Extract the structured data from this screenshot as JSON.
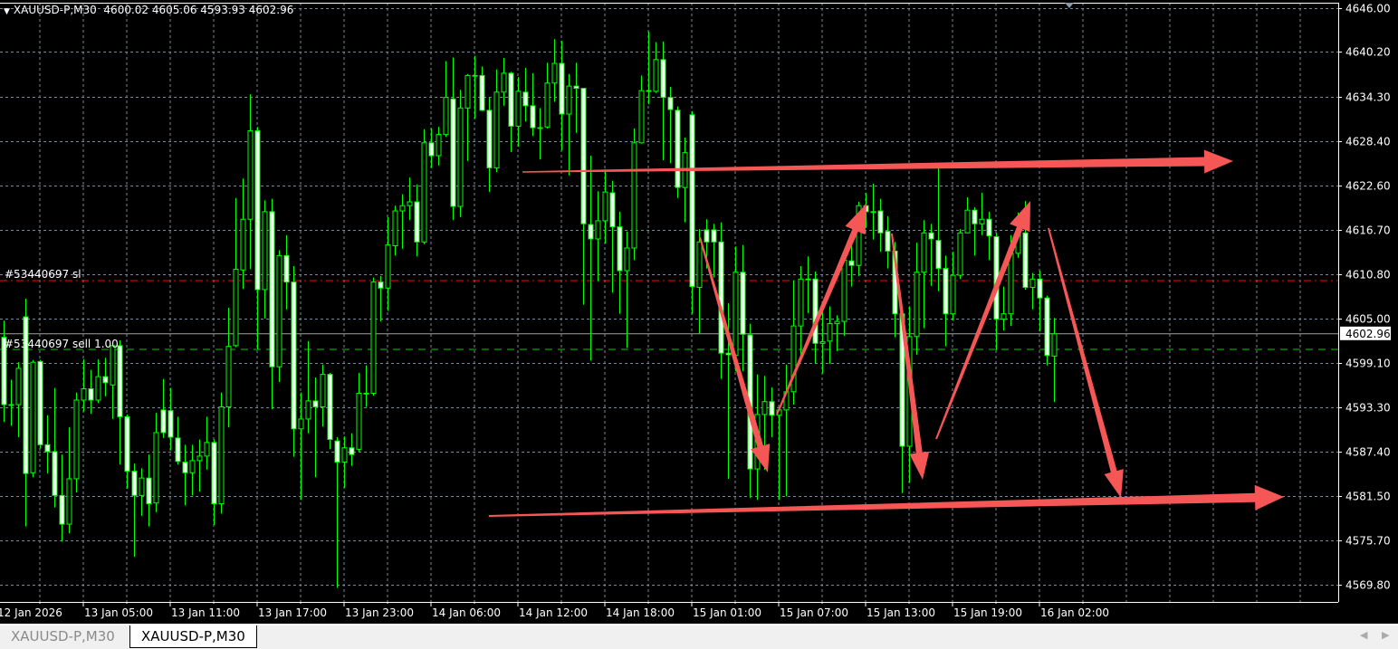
{
  "header": {
    "symbol": "XAUUSD-P,M30",
    "ohlc": "4600.02 4605.06 4593.93 4602.96"
  },
  "tabs": [
    {
      "label": "XAUUSD-P,M30",
      "active": false
    },
    {
      "label": "XAUUSD-P,M30",
      "active": true
    }
  ],
  "order_labels": {
    "sl": "#53440697 sl",
    "sell": "#53440697 sell 1.00"
  },
  "colors": {
    "background": "#000000",
    "candle_outline": "#00ff00",
    "bear_fill": "#ffffff",
    "bull_fill": "#000000",
    "grid": "#778899",
    "sl_line": "#ff0000",
    "order_line": "#00cc00",
    "bid_line": "#a0a0a0",
    "annotation_arrows": "#f55656"
  },
  "chart_data": {
    "type": "candlestick",
    "title": "XAUUSD-P,M30",
    "timeframe": "M30",
    "ylim": [
      4569.8,
      4646.0
    ],
    "grid": true,
    "y_ticks": [
      "4646.00",
      "4640.20",
      "4634.30",
      "4628.40",
      "4622.60",
      "4616.70",
      "4610.80",
      "4605.00",
      "4599.10",
      "4593.30",
      "4587.40",
      "4581.50",
      "4575.70",
      "4569.80"
    ],
    "x_ticks": [
      "12 Jan 2026",
      "13 Jan 05:00",
      "13 Jan 11:00",
      "13 Jan 17:00",
      "13 Jan 23:00",
      "14 Jan 06:00",
      "14 Jan 12:00",
      "14 Jan 18:00",
      "15 Jan 01:00",
      "15 Jan 07:00",
      "15 Jan 13:00",
      "15 Jan 19:00",
      "16 Jan 02:00"
    ],
    "current_price": "4602.96",
    "sl_price": 4610.0,
    "order_price": 4600.9,
    "ohlc_fields": [
      "open",
      "high",
      "low",
      "close"
    ],
    "candles": [
      [
        4602.5,
        4604.7,
        4591.3,
        4593.6
      ],
      [
        4593.6,
        4596.9,
        4590.8,
        4593.6
      ],
      [
        4593.6,
        4599.2,
        4589.3,
        4598.4
      ],
      [
        4605.2,
        4607.6,
        4577.5,
        4584.5
      ],
      [
        4584.6,
        4599.5,
        4584.0,
        4599.2
      ],
      [
        4599.3,
        4599.5,
        4587.8,
        4588.3
      ],
      [
        4588.3,
        4592.2,
        4584.5,
        4587.4
      ],
      [
        4587.4,
        4595.8,
        4580.0,
        4581.6
      ],
      [
        4581.6,
        4587.0,
        4575.5,
        4577.8
      ],
      [
        4577.8,
        4590.6,
        4576.6,
        4583.8
      ],
      [
        4583.8,
        4595.2,
        4582.0,
        4594.2
      ],
      [
        4594.2,
        4599.6,
        4592.7,
        4595.7
      ],
      [
        4595.7,
        4598.2,
        4592.4,
        4594.2
      ],
      [
        4594.2,
        4599.6,
        4593.8,
        4597.3
      ],
      [
        4597.3,
        4599.8,
        4594.7,
        4596.5
      ],
      [
        4596.2,
        4601.4,
        4591.7,
        4601.4
      ],
      [
        4601.4,
        4602.1,
        4585.7,
        4592.0
      ],
      [
        4592.0,
        4592.3,
        4582.5,
        4584.8
      ],
      [
        4584.8,
        4585.8,
        4573.5,
        4581.6
      ],
      [
        4581.6,
        4585.2,
        4578.9,
        4583.9
      ],
      [
        4583.9,
        4587.0,
        4577.5,
        4580.5
      ],
      [
        4580.6,
        4592.5,
        4579.4,
        4589.9
      ],
      [
        4592.9,
        4597.0,
        4589.2,
        4589.9
      ],
      [
        4592.8,
        4595.8,
        4587.6,
        4589.3
      ],
      [
        4589.2,
        4592.0,
        4585.7,
        4586.1
      ],
      [
        4586.0,
        4588.3,
        4580.3,
        4584.6
      ],
      [
        4584.6,
        4588.3,
        4581.6,
        4586.2
      ],
      [
        4586.2,
        4589.0,
        4582.1,
        4586.8
      ],
      [
        4586.8,
        4592.0,
        4585.0,
        4588.6
      ],
      [
        4588.6,
        4589.0,
        4577.7,
        4580.5
      ],
      [
        4580.5,
        4595.2,
        4579.2,
        4593.3
      ],
      [
        4593.3,
        4606.4,
        4590.6,
        4601.3
      ],
      [
        4601.4,
        4620.9,
        4601.2,
        4611.5
      ],
      [
        4611.4,
        4623.5,
        4608.9,
        4618.1
      ],
      [
        4618.1,
        4634.6,
        4611.5,
        4629.8
      ],
      [
        4629.8,
        4630.3,
        4600.9,
        4608.8
      ],
      [
        4608.8,
        4620.6,
        4605.0,
        4619.1
      ],
      [
        4619.1,
        4620.8,
        4593.0,
        4598.6
      ],
      [
        4598.6,
        4614.0,
        4596.6,
        4613.3
      ],
      [
        4613.3,
        4616.0,
        4606.2,
        4609.8
      ],
      [
        4609.8,
        4611.9,
        4586.7,
        4590.4
      ],
      [
        4590.4,
        4595.2,
        4581.0,
        4591.7
      ],
      [
        4591.7,
        4602.0,
        4589.8,
        4594.1
      ],
      [
        4594.1,
        4597.2,
        4584.0,
        4593.3
      ],
      [
        4593.3,
        4598.9,
        4590.7,
        4597.6
      ],
      [
        4597.6,
        4597.8,
        4587.7,
        4589.0
      ],
      [
        4588.8,
        4589.3,
        4569.4,
        4586.0
      ],
      [
        4586.0,
        4589.4,
        4582.6,
        4587.9
      ],
      [
        4587.9,
        4589.8,
        4585.5,
        4587.0
      ],
      [
        4587.7,
        4597.8,
        4587.4,
        4595.1
      ],
      [
        4595.1,
        4598.8,
        4593.3,
        4595.1
      ],
      [
        4595.1,
        4610.4,
        4594.8,
        4609.8
      ],
      [
        4609.8,
        4610.6,
        4604.6,
        4609.0
      ],
      [
        4609.0,
        4618.4,
        4606.0,
        4614.7
      ],
      [
        4614.6,
        4619.9,
        4613.3,
        4619.2
      ],
      [
        4619.2,
        4621.4,
        4614.2,
        4619.9
      ],
      [
        4619.9,
        4623.6,
        4618.0,
        4620.4
      ],
      [
        4620.4,
        4622.7,
        4613.2,
        4615.1
      ],
      [
        4615.1,
        4630.0,
        4614.8,
        4628.2
      ],
      [
        4628.2,
        4630.1,
        4624.9,
        4626.5
      ],
      [
        4626.5,
        4630.3,
        4625.2,
        4629.3
      ],
      [
        4629.3,
        4639.0,
        4629.0,
        4634.2
      ],
      [
        4634.0,
        4639.5,
        4618.0,
        4619.8
      ],
      [
        4619.8,
        4635.2,
        4618.4,
        4632.8
      ],
      [
        4632.8,
        4637.3,
        4625.8,
        4637.1
      ],
      [
        4637.1,
        4639.7,
        4631.4,
        4637.1
      ],
      [
        4637.1,
        4638.3,
        4632.4,
        4632.5
      ],
      [
        4632.5,
        4634.2,
        4621.7,
        4624.9
      ],
      [
        4624.9,
        4637.9,
        4624.3,
        4634.9
      ],
      [
        4634.9,
        4639.4,
        4633.1,
        4637.4
      ],
      [
        4637.4,
        4637.6,
        4627.0,
        4630.4
      ],
      [
        4630.4,
        4636.9,
        4627.7,
        4635.0
      ],
      [
        4634.9,
        4638.1,
        4631.0,
        4633.1
      ],
      [
        4633.1,
        4637.4,
        4629.1,
        4630.2
      ],
      [
        4630.2,
        4632.8,
        4626.0,
        4630.2
      ],
      [
        4630.3,
        4638.8,
        4630.1,
        4636.1
      ],
      [
        4636.1,
        4641.9,
        4633.6,
        4638.7
      ],
      [
        4638.7,
        4641.7,
        4627.2,
        4632.0
      ],
      [
        4632.0,
        4637.3,
        4623.9,
        4635.7
      ],
      [
        4635.7,
        4638.8,
        4629.5,
        4635.4
      ],
      [
        4635.4,
        4635.4,
        4606.8,
        4617.5
      ],
      [
        4617.4,
        4626.5,
        4599.4,
        4615.5
      ],
      [
        4615.5,
        4621.8,
        4609.9,
        4617.9
      ],
      [
        4617.9,
        4624.7,
        4614.9,
        4621.7
      ],
      [
        4621.6,
        4623.2,
        4608.4,
        4617.1
      ],
      [
        4617.1,
        4619.1,
        4605.6,
        4611.3
      ],
      [
        4611.3,
        4616.5,
        4601.1,
        4614.3
      ],
      [
        4614.3,
        4630.1,
        4612.7,
        4628.2
      ],
      [
        4628.2,
        4637.1,
        4628.1,
        4635.1
      ],
      [
        4635.1,
        4642.9,
        4633.3,
        4635.0
      ],
      [
        4635.0,
        4641.5,
        4634.8,
        4639.2
      ],
      [
        4639.2,
        4641.6,
        4625.9,
        4634.2
      ],
      [
        4634.2,
        4635.6,
        4625.5,
        4632.6
      ],
      [
        4632.5,
        4633.0,
        4620.9,
        4622.3
      ],
      [
        4622.3,
        4628.9,
        4617.7,
        4626.9
      ],
      [
        4631.9,
        4632.4,
        4605.6,
        4609.2
      ],
      [
        4609.1,
        4616.8,
        4603.0,
        4615.1
      ],
      [
        4616.7,
        4618.1,
        4611.6,
        4615.1
      ],
      [
        4616.7,
        4617.5,
        4610.4,
        4615.1
      ],
      [
        4615.1,
        4617.7,
        4597.0,
        4600.4
      ],
      [
        4600.4,
        4607.0,
        4583.8,
        4600.2
      ],
      [
        4600.1,
        4614.5,
        4598.0,
        4611.1
      ],
      [
        4611.1,
        4614.7,
        4598.0,
        4602.9
      ],
      [
        4602.8,
        4604.3,
        4581.3,
        4585.1
      ],
      [
        4585.1,
        4597.6,
        4581.0,
        4592.3
      ],
      [
        4592.3,
        4597.4,
        4585.0,
        4594.0
      ],
      [
        4594.0,
        4595.9,
        4589.3,
        4592.2
      ],
      [
        4592.2,
        4593.0,
        4581.0,
        4592.9
      ],
      [
        4592.9,
        4598.9,
        4581.5,
        4595.3
      ],
      [
        4595.3,
        4610.0,
        4593.6,
        4604.0
      ],
      [
        4604.0,
        4611.9,
        4600.2,
        4610.2
      ],
      [
        4610.2,
        4613.2,
        4605.7,
        4610.2
      ],
      [
        4610.2,
        4611.2,
        4599.1,
        4601.7
      ],
      [
        4601.7,
        4606.6,
        4597.7,
        4601.9
      ],
      [
        4602.0,
        4606.6,
        4599.0,
        4604.3
      ],
      [
        4604.3,
        4605.4,
        4600.7,
        4604.6
      ],
      [
        4604.6,
        4613.9,
        4602.7,
        4612.7
      ],
      [
        4612.6,
        4615.1,
        4609.2,
        4612.0
      ],
      [
        4612.0,
        4620.4,
        4610.6,
        4619.9
      ],
      [
        4619.9,
        4621.6,
        4617.0,
        4619.1
      ],
      [
        4619.1,
        4622.8,
        4615.4,
        4619.1
      ],
      [
        4619.2,
        4620.8,
        4613.8,
        4616.3
      ],
      [
        4616.5,
        4618.5,
        4611.6,
        4613.9
      ],
      [
        4613.9,
        4615.1,
        4602.5,
        4605.6
      ],
      [
        4605.6,
        4606.0,
        4581.9,
        4588.1
      ],
      [
        4588.1,
        4606.6,
        4583.3,
        4602.6
      ],
      [
        4602.6,
        4615.0,
        4600.2,
        4611.1
      ],
      [
        4611.1,
        4618.0,
        4603.7,
        4616.3
      ],
      [
        4616.3,
        4617.5,
        4609.3,
        4615.5
      ],
      [
        4615.3,
        4624.9,
        4608.6,
        4611.6
      ],
      [
        4611.6,
        4613.3,
        4601.3,
        4605.6
      ],
      [
        4605.6,
        4613.8,
        4604.7,
        4610.7
      ],
      [
        4610.7,
        4616.8,
        4610.2,
        4616.3
      ],
      [
        4616.3,
        4621.0,
        4616.3,
        4619.3
      ],
      [
        4619.3,
        4619.7,
        4613.3,
        4617.5
      ],
      [
        4617.5,
        4621.6,
        4616.0,
        4618.1
      ],
      [
        4618.1,
        4619.1,
        4612.7,
        4615.9
      ],
      [
        4615.8,
        4616.3,
        4600.8,
        4604.9
      ],
      [
        4604.9,
        4609.2,
        4603.4,
        4605.6
      ],
      [
        4605.6,
        4616.0,
        4604.0,
        4613.6
      ],
      [
        4613.6,
        4619.0,
        4613.0,
        4616.5
      ],
      [
        4616.3,
        4620.5,
        4608.8,
        4609.1
      ],
      [
        4609.1,
        4611.0,
        4606.2,
        4610.2
      ],
      [
        4610.2,
        4611.3,
        4603.3,
        4607.7
      ],
      [
        4607.7,
        4608.0,
        4598.8,
        4600.1
      ],
      [
        4600.02,
        4605.06,
        4593.93,
        4602.96
      ]
    ]
  }
}
